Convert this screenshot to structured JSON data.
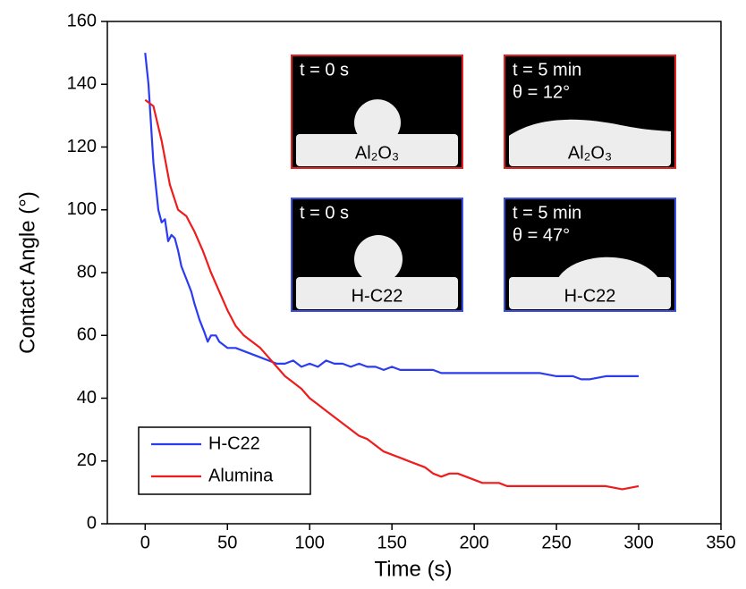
{
  "chart_data": {
    "type": "line",
    "xlabel": "Time (s)",
    "ylabel": "Contact Angle (°)",
    "xlim": [
      -23,
      350
    ],
    "ylim": [
      0,
      160
    ],
    "xticks": [
      0,
      50,
      100,
      150,
      200,
      250,
      300,
      350
    ],
    "yticks": [
      0,
      20,
      40,
      60,
      80,
      100,
      120,
      140,
      160
    ],
    "legend": "lower left",
    "series": [
      {
        "name": "H-C22",
        "color": "#2b3cf0",
        "x": [
          0,
          2,
          5,
          8,
          10,
          12,
          14,
          16,
          18,
          20,
          22,
          25,
          28,
          30,
          33,
          36,
          38,
          40,
          43,
          45,
          50,
          55,
          60,
          65,
          70,
          75,
          80,
          85,
          90,
          95,
          100,
          105,
          110,
          115,
          120,
          125,
          130,
          135,
          140,
          145,
          150,
          155,
          160,
          165,
          170,
          175,
          180,
          190,
          200,
          210,
          220,
          230,
          240,
          250,
          260,
          265,
          270,
          280,
          290,
          300
        ],
        "values": [
          150,
          140,
          115,
          100,
          96,
          97,
          90,
          92,
          91,
          87,
          82,
          78,
          74,
          70,
          65,
          61,
          58,
          60,
          60,
          58,
          56,
          56,
          55,
          54,
          53,
          52,
          51,
          51,
          52,
          50,
          51,
          50,
          52,
          51,
          51,
          50,
          51,
          50,
          50,
          49,
          50,
          49,
          49,
          49,
          49,
          49,
          48,
          48,
          48,
          48,
          48,
          48,
          48,
          47,
          47,
          46,
          46,
          47,
          47,
          47
        ]
      },
      {
        "name": "Alumina",
        "color": "#ee1c1c",
        "x": [
          0,
          5,
          10,
          15,
          20,
          25,
          30,
          35,
          40,
          45,
          50,
          55,
          60,
          65,
          70,
          75,
          80,
          85,
          90,
          95,
          100,
          105,
          110,
          115,
          120,
          125,
          130,
          135,
          140,
          145,
          150,
          155,
          160,
          165,
          170,
          175,
          180,
          185,
          190,
          195,
          200,
          205,
          210,
          215,
          220,
          230,
          240,
          250,
          260,
          270,
          280,
          290,
          300
        ],
        "values": [
          135,
          133,
          122,
          108,
          100,
          98,
          93,
          87,
          80,
          74,
          68,
          63,
          60,
          58,
          56,
          53,
          50,
          47,
          45,
          43,
          40,
          38,
          36,
          34,
          32,
          30,
          28,
          27,
          25,
          23,
          22,
          21,
          20,
          19,
          18,
          16,
          15,
          16,
          16,
          15,
          14,
          13,
          13,
          13,
          12,
          12,
          12,
          12,
          12,
          12,
          12,
          11,
          12
        ]
      }
    ],
    "insets": [
      {
        "lines": [
          "t = 0 s"
        ],
        "material": "Al₂O₃",
        "border_color": "#e32020"
      },
      {
        "lines": [
          "t = 5 min",
          "θ = 12°"
        ],
        "material": "Al₂O₃",
        "border_color": "#e32020"
      },
      {
        "lines": [
          "t = 0 s"
        ],
        "material": "H-C22",
        "border_color": "#3a4fe0"
      },
      {
        "lines": [
          "t = 5 min",
          "θ = 47°"
        ],
        "material": "H-C22",
        "border_color": "#3a4fe0"
      }
    ]
  }
}
